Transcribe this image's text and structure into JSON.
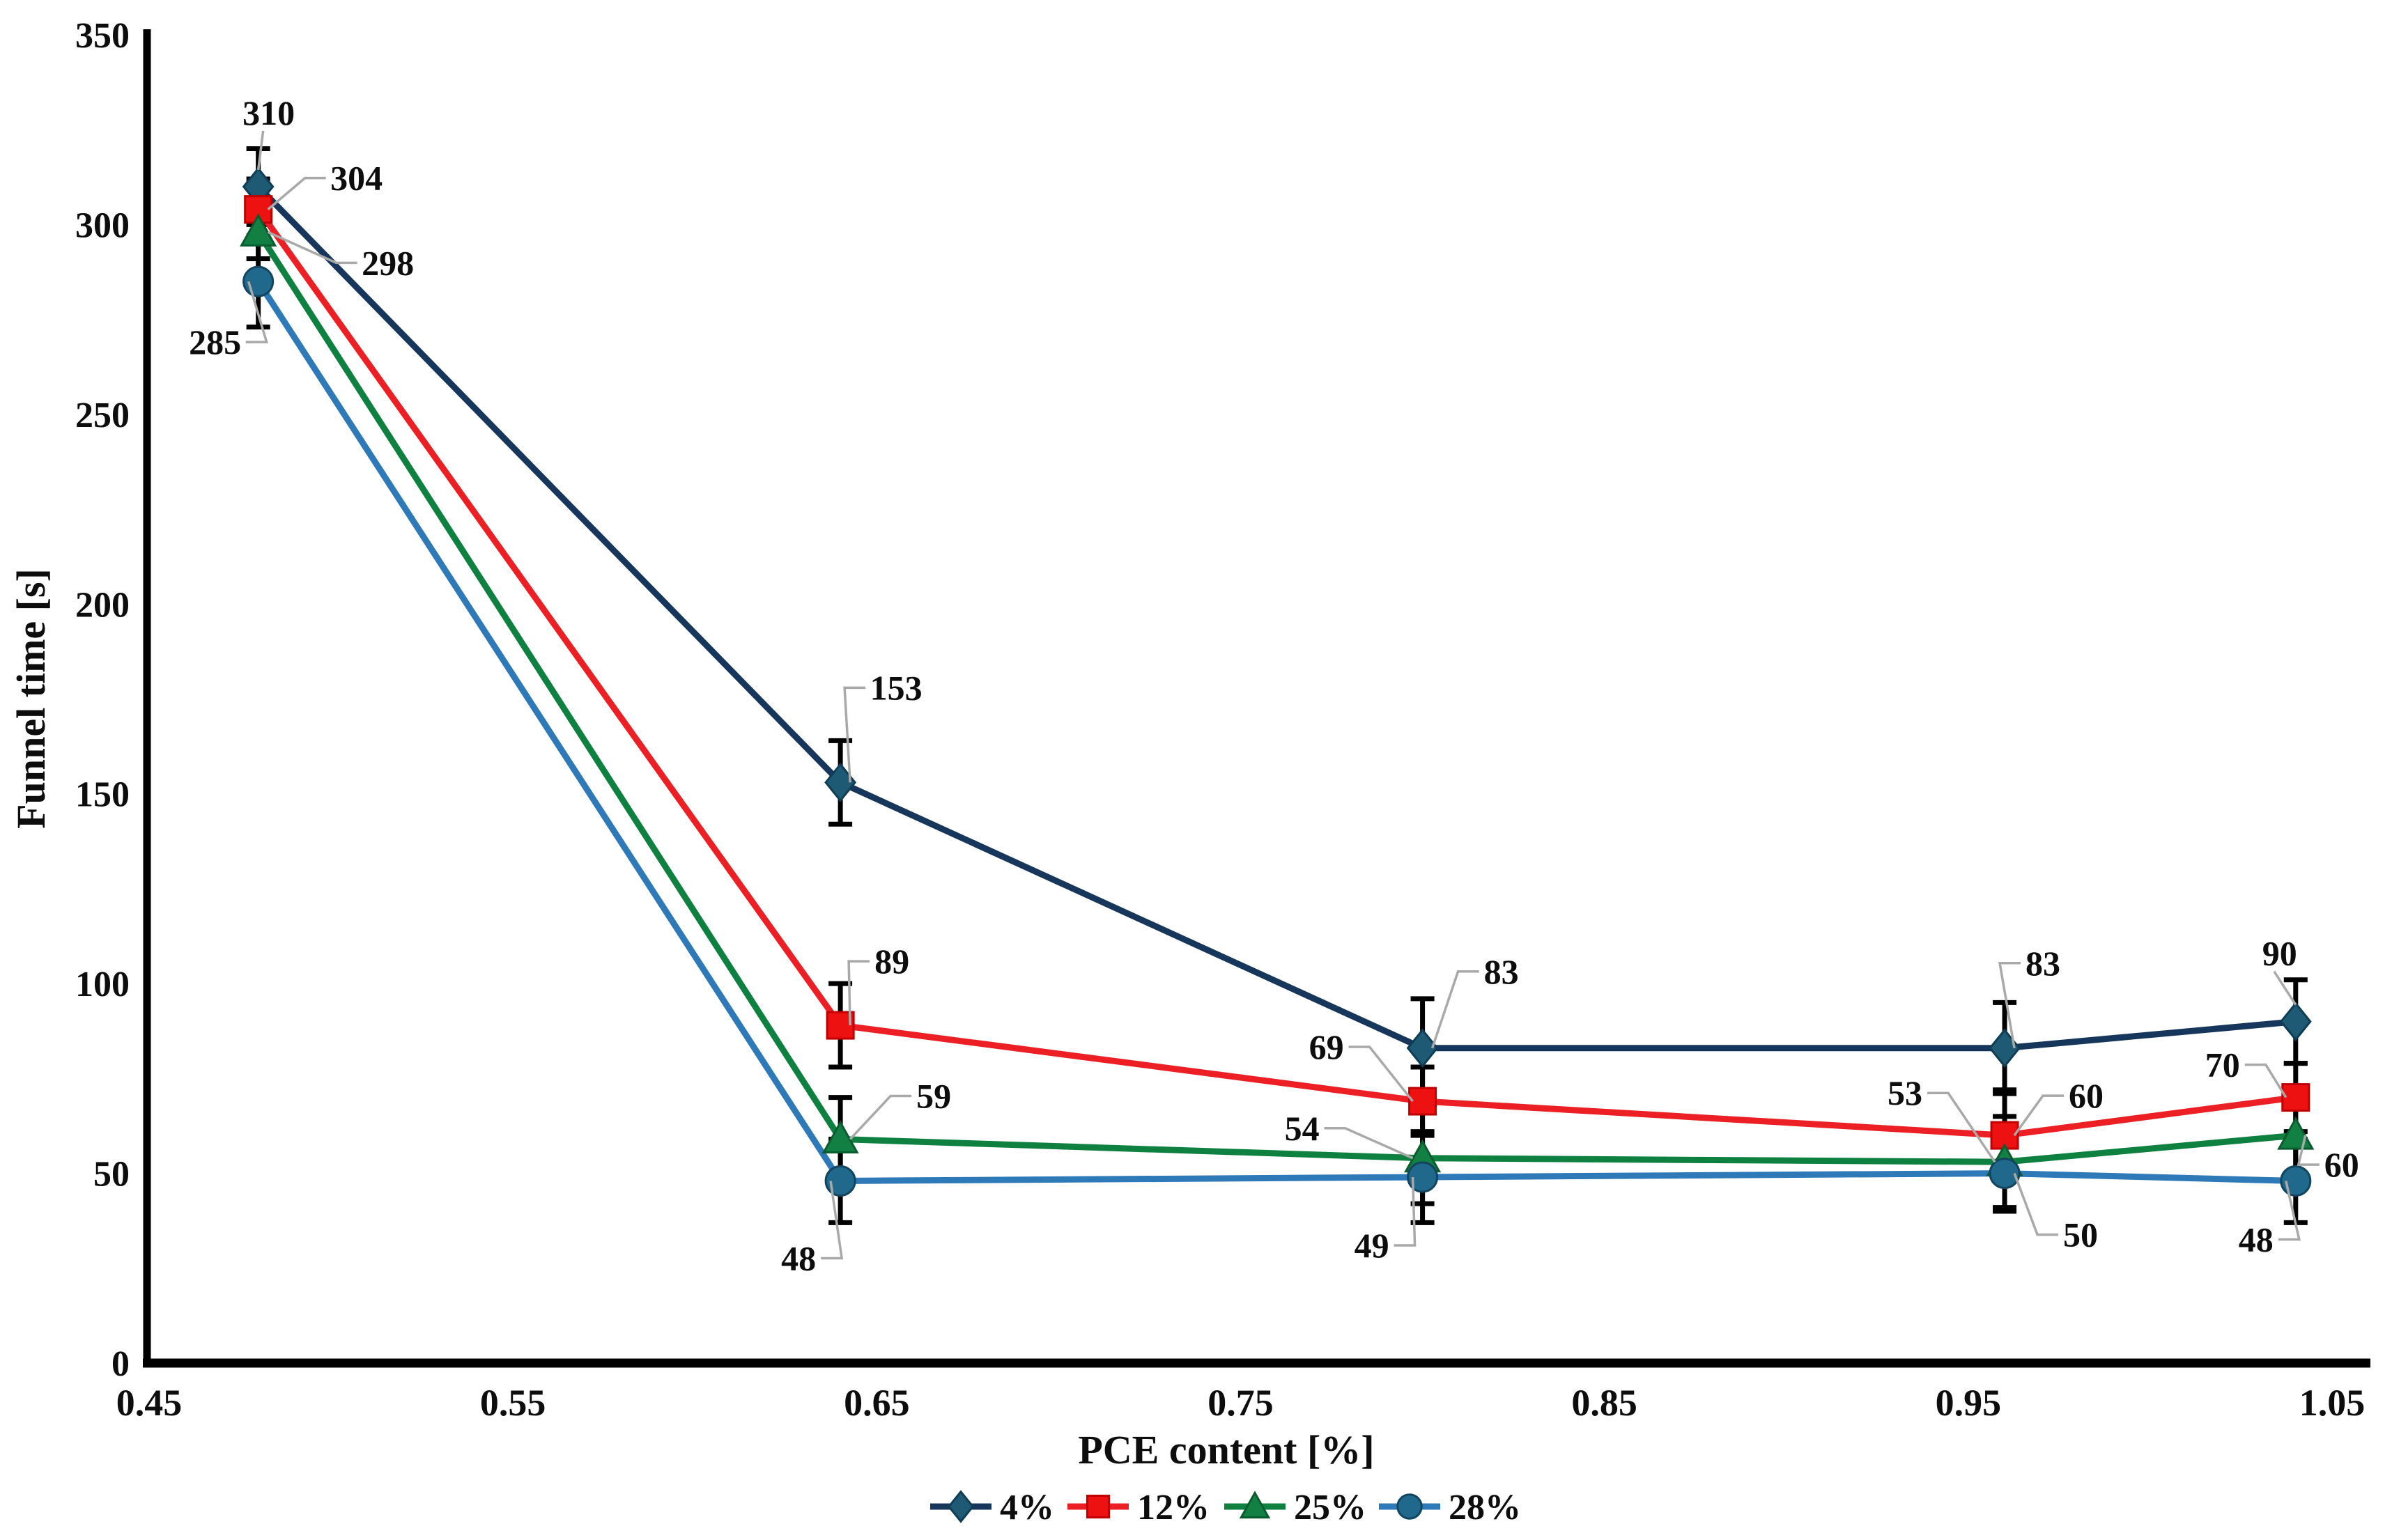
{
  "chart_data": {
    "type": "line",
    "title": "",
    "xlabel": "PCE content [%]",
    "ylabel": "Funnel time [s]",
    "xlim": [
      0.45,
      1.05
    ],
    "ylim": [
      0,
      350
    ],
    "grid": false,
    "x_ticks": [
      "0.45",
      "0.55",
      "0.65",
      "0.75",
      "0.85",
      "0.95",
      "1.05"
    ],
    "x_tick_values": [
      0.45,
      0.55,
      0.65,
      0.75,
      0.85,
      0.95,
      1.05
    ],
    "y_ticks": [
      "0",
      "50",
      "100",
      "150",
      "200",
      "250",
      "300",
      "350"
    ],
    "y_tick_values": [
      0,
      50,
      100,
      150,
      200,
      250,
      300,
      350
    ],
    "x": [
      0.48,
      0.64,
      0.8,
      0.96,
      1.04
    ],
    "series": [
      {
        "name": "4%",
        "line_color": "#16365c",
        "marker": "diamond",
        "marker_fill": "#1e5a73",
        "marker_stroke": "#0e3d54",
        "values": [
          310,
          153,
          83,
          83,
          90
        ],
        "errors": [
          10,
          11,
          13,
          12,
          11
        ],
        "point_labels": [
          "310",
          "153",
          "83",
          "83",
          "90"
        ],
        "label_offsets": [
          [
            15,
            -106
          ],
          [
            80,
            -136
          ],
          [
            113,
            -110
          ],
          [
            55,
            -122
          ],
          [
            -23,
            -98
          ]
        ]
      },
      {
        "name": "12%",
        "line_color": "#ec2024",
        "marker": "square",
        "marker_fill": "#ee1111",
        "marker_stroke": "#c00000",
        "values": [
          304,
          89,
          69,
          60,
          70
        ],
        "errors": [
          8,
          11,
          9,
          12,
          9
        ],
        "point_labels": [
          "304",
          "89",
          "69",
          "60",
          "70"
        ],
        "label_offsets": [
          [
            141,
            -45
          ],
          [
            74,
            -92
          ],
          [
            -138,
            -78
          ],
          [
            117,
            -57
          ],
          [
            -105,
            -47
          ]
        ]
      },
      {
        "name": "25%",
        "line_color": "#0e8040",
        "marker": "triangle",
        "marker_fill": "#128042",
        "marker_stroke": "#0a5c2e",
        "values": [
          298,
          59,
          54,
          53,
          60
        ],
        "errors": [
          7,
          11,
          12,
          12,
          12
        ],
        "point_labels": [
          "298",
          "59",
          "54",
          "53",
          "60"
        ],
        "label_offsets": [
          [
            186,
            44
          ],
          [
            134,
            -62
          ],
          [
            -173,
            -43
          ],
          [
            -143,
            -99
          ],
          [
            66,
            42
          ]
        ]
      },
      {
        "name": "28%",
        "line_color": "#2e79b8",
        "marker": "circle",
        "marker_fill": "#20688c",
        "marker_stroke": "#12455f",
        "values": [
          285,
          48,
          49,
          50,
          48
        ],
        "errors": [
          12,
          11,
          12,
          10,
          11
        ],
        "point_labels": [
          "285",
          "48",
          "49",
          "50",
          "48"
        ],
        "label_offsets": [
          [
            -62,
            87
          ],
          [
            -60,
            111
          ],
          [
            -73,
            98
          ],
          [
            109,
            88
          ],
          [
            -57,
            84
          ]
        ]
      }
    ],
    "legend": {
      "position": "bottom",
      "labels": [
        "4%",
        "12%",
        "25%",
        "28%"
      ]
    },
    "colors": {
      "axis": "#000000",
      "error_bar": "#000000",
      "leader_line": "#a9a9a9",
      "label_text": "#0d0d0d",
      "background": "#ffffff"
    }
  }
}
